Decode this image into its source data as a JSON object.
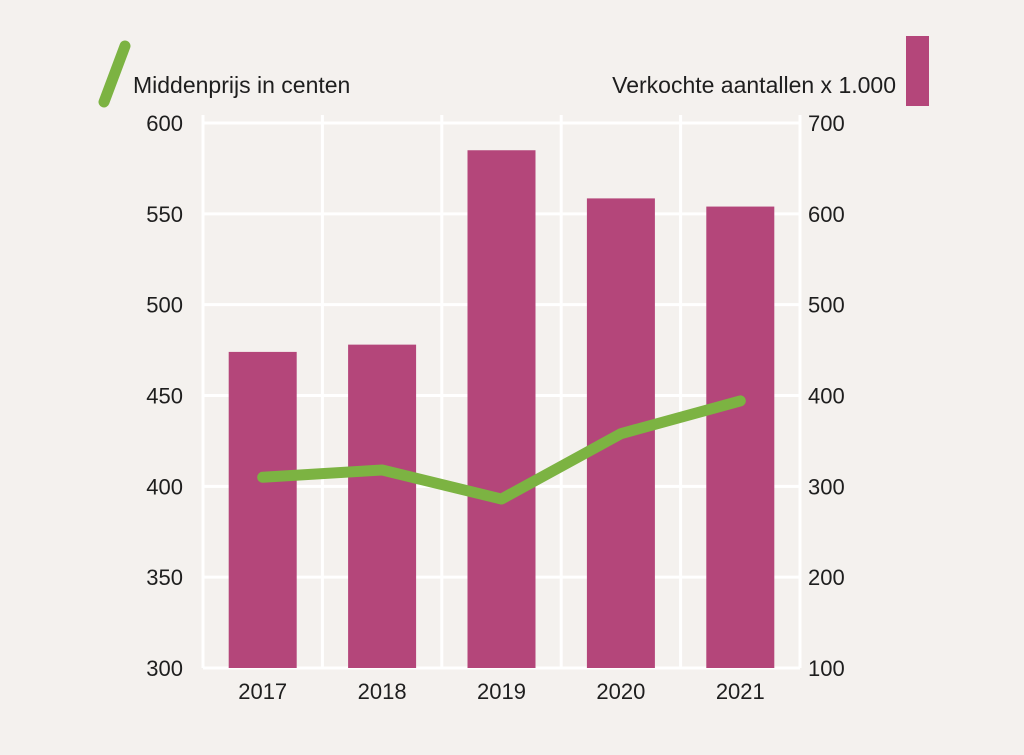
{
  "chart_data": {
    "type": "bar+line",
    "categories": [
      "2017",
      "2018",
      "2019",
      "2020",
      "2021"
    ],
    "series": [
      {
        "name": "Verkochte aantallen x 1.000",
        "type": "bar",
        "axis": "right",
        "color": "#b4467a",
        "values": [
          448,
          456,
          670,
          617,
          608
        ]
      },
      {
        "name": "Middenprijs in centen",
        "type": "line",
        "axis": "left",
        "color": "#7cb342",
        "values": [
          405,
          409,
          393,
          429,
          447
        ]
      }
    ],
    "y_left": {
      "ticks": [
        "600",
        "550",
        "500",
        "450",
        "400",
        "350",
        "300"
      ],
      "ylim": [
        300,
        600
      ]
    },
    "y_right": {
      "ticks": [
        "700",
        "600",
        "500",
        "400",
        "300",
        "200",
        "100"
      ],
      "ylim": [
        100,
        700
      ]
    },
    "grid": true,
    "legend": {
      "left_label": "Middenprijs in centen",
      "right_label": "Verkochte aantallen x 1.000"
    }
  }
}
